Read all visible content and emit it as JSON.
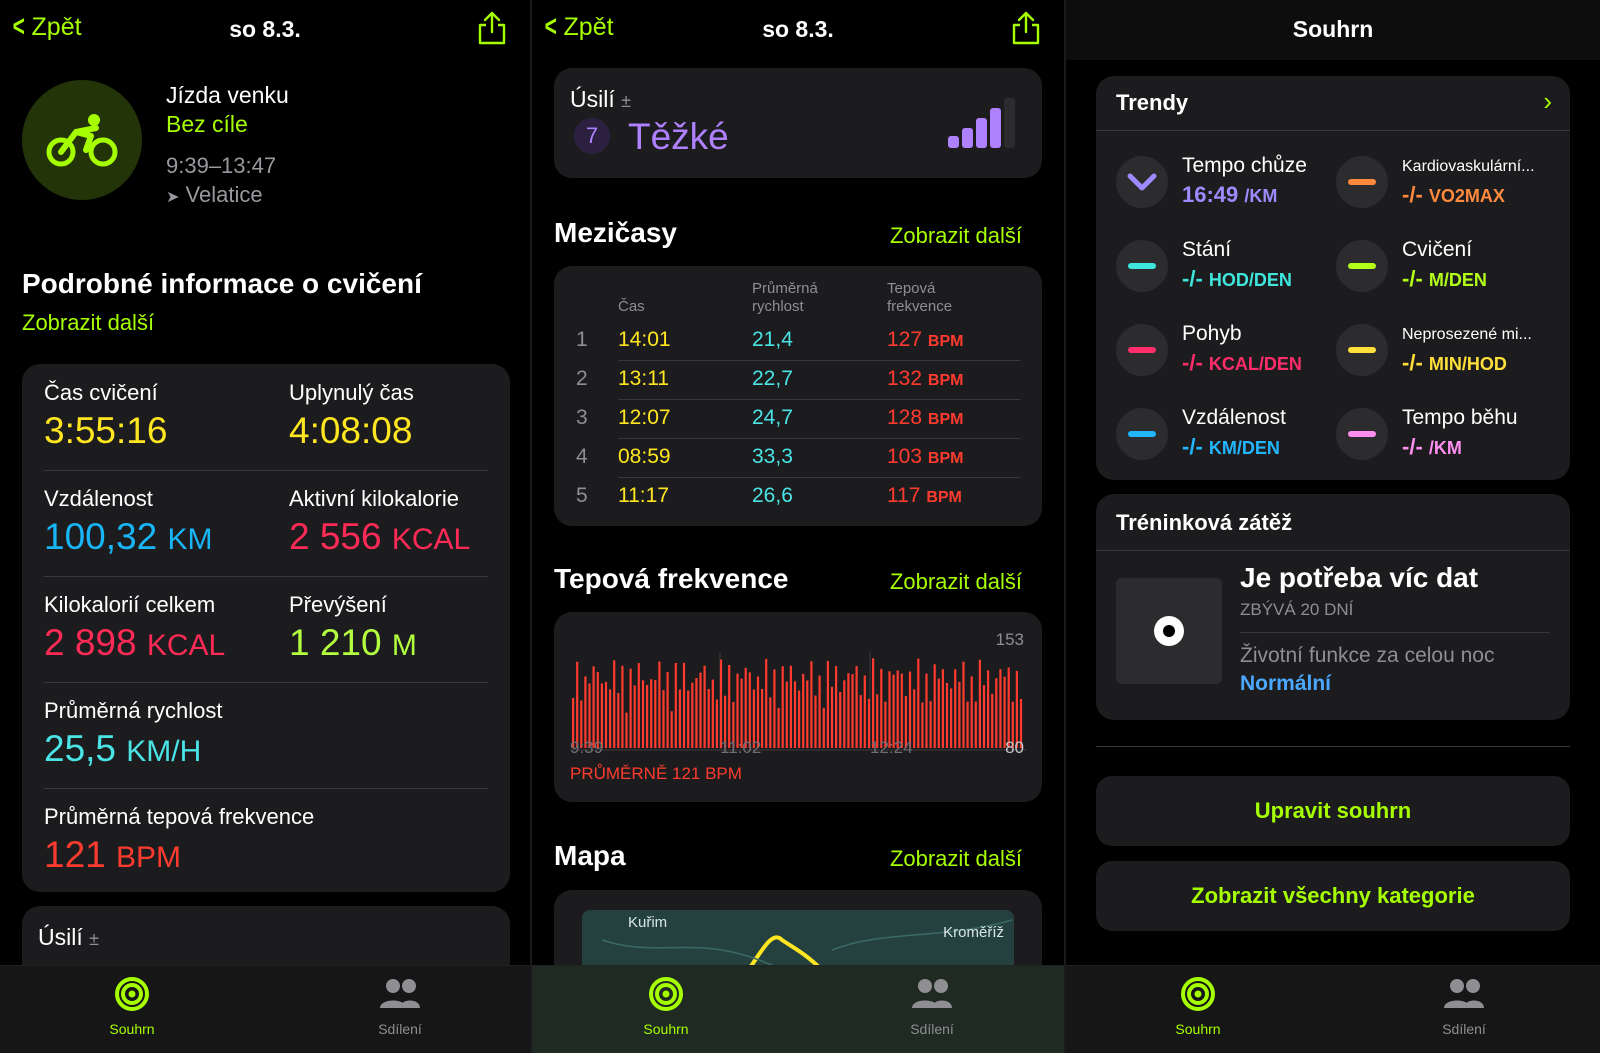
{
  "panel1": {
    "nav": {
      "back": "Zpět",
      "title": "so 8.3."
    },
    "workout": {
      "title": "Jízda venku",
      "goal": "Bez cíle",
      "time": "9:39–13:47",
      "location": "Velatice"
    },
    "details_heading": "Podrobné informace o cvičení",
    "show_more": "Zobrazit další",
    "metrics": {
      "workout_time": {
        "label": "Čas cvičení",
        "value": "3:55:16"
      },
      "elapsed_time": {
        "label": "Uplynulý čas",
        "value": "4:08:08"
      },
      "distance": {
        "label": "Vzdálenost",
        "value": "100,32",
        "unit": "KM"
      },
      "active_kcal": {
        "label": "Aktivní kilokalorie",
        "value": "2 556",
        "unit": "KCAL"
      },
      "total_kcal": {
        "label": "Kilokalorií celkem",
        "value": "2 898",
        "unit": "KCAL"
      },
      "elevation": {
        "label": "Převýšení",
        "value": "1 210",
        "unit": "M"
      },
      "avg_speed": {
        "label": "Průměrná rychlost",
        "value": "25,5",
        "unit": "KM/H"
      },
      "avg_hr": {
        "label": "Průměrná tepová frekvence",
        "value": "121",
        "unit": "BPM"
      }
    },
    "effort_peek": {
      "label": "Úsilí",
      "plusminus": "±"
    }
  },
  "panel2": {
    "nav": {
      "back": "Zpět",
      "title": "so 8.3."
    },
    "effort": {
      "label": "Úsilí",
      "plusminus": "±",
      "score": "7",
      "word": "Těžké"
    },
    "splits": {
      "heading": "Mezičasy",
      "more": "Zobrazit další",
      "col_time": "Čas",
      "col_speed": "Průměrná rychlost",
      "col_hr": "Tepová frekvence",
      "rows": [
        {
          "n": "1",
          "time": "14:01",
          "speed": "21,4",
          "hr": "127",
          "unit": "BPM"
        },
        {
          "n": "2",
          "time": "13:11",
          "speed": "22,7",
          "hr": "132",
          "unit": "BPM"
        },
        {
          "n": "3",
          "time": "12:07",
          "speed": "24,7",
          "hr": "128",
          "unit": "BPM"
        },
        {
          "n": "4",
          "time": "08:59",
          "speed": "33,3",
          "hr": "103",
          "unit": "BPM"
        },
        {
          "n": "5",
          "time": "11:17",
          "speed": "26,6",
          "hr": "117",
          "unit": "BPM"
        }
      ]
    },
    "hr": {
      "heading": "Tepová frekvence",
      "more": "Zobrazit další",
      "max_label": "153",
      "min_label": "80",
      "ticks": [
        "9:39",
        "11:02",
        "12:24"
      ],
      "average": "PRŮMĚRNĚ 121 BPM"
    },
    "map": {
      "heading": "Mapa",
      "more": "Zobrazit další",
      "place1": "Kuřim",
      "place2": "Kroměříž"
    }
  },
  "panel3": {
    "title": "Souhrn",
    "trends": {
      "heading": "Trendy",
      "items": [
        {
          "name": "Tempo chůze",
          "value": "16:49",
          "unit": "/KM",
          "color": "#9d8cff"
        },
        {
          "name": "Kardiovaskulární...",
          "value": "-/-",
          "unit": "VO2MAX",
          "color": "#ff8a3d"
        },
        {
          "name": "Stání",
          "value": "-/-",
          "unit": "HOD/DEN",
          "color": "#3ee6dd"
        },
        {
          "name": "Cvičení",
          "value": "-/-",
          "unit": "M/DEN",
          "color": "#b3ff1a"
        },
        {
          "name": "Pohyb",
          "value": "-/-",
          "unit": "KCAL/DEN",
          "color": "#ff2d6a"
        },
        {
          "name": "Neprosezené mi...",
          "value": "-/-",
          "unit": "MIN/HOD",
          "color": "#ffe03a"
        },
        {
          "name": "Vzdálenost",
          "value": "-/-",
          "unit": "KM/DEN",
          "color": "#22b6ff"
        },
        {
          "name": "Tempo běhu",
          "value": "-/-",
          "unit": "/KM",
          "color": "#ff8ef0"
        }
      ]
    },
    "training": {
      "heading": "Tréninková zátěž",
      "status": "Je potřeba víc dat",
      "remaining": "ZBÝVÁ 20 DNÍ",
      "vitals": "Životní funkce za celou noc",
      "vitals_value": "Normální"
    },
    "buttons": {
      "edit": "Upravit souhrn",
      "all": "Zobrazit všechny kategorie"
    }
  },
  "tabbar": {
    "summary": "Souhrn",
    "sharing": "Sdílení"
  },
  "colors": {
    "accent": "#a6ff00",
    "background": "#000000",
    "card": "#1c1c1e"
  }
}
